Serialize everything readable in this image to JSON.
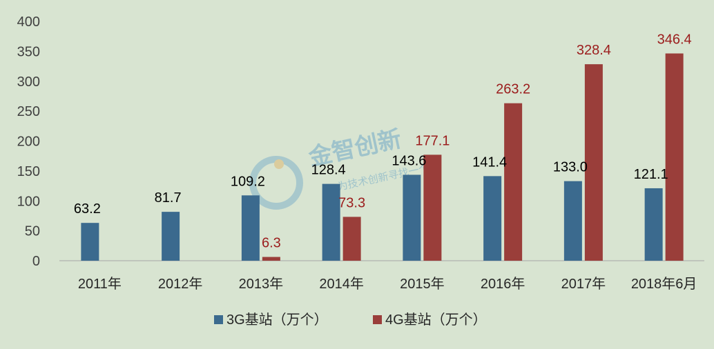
{
  "chart_data": {
    "type": "bar",
    "categories": [
      "2011年",
      "2012年",
      "2013年",
      "2014年",
      "2015年",
      "2016年",
      "2017年",
      "2018年6月"
    ],
    "series": [
      {
        "name": "3G基站（万个）",
        "values": [
          63.2,
          81.7,
          109.2,
          128.4,
          143.6,
          141.4,
          133.0,
          121.1
        ],
        "labels": [
          "63.2",
          "81.7",
          "109.2",
          "128.4",
          "143.6",
          "141.4",
          "133.0",
          "121.1"
        ],
        "color": "#3b6a8e",
        "label_color": "#000000"
      },
      {
        "name": "4G基站（万个）",
        "values": [
          null,
          null,
          6.3,
          73.3,
          177.1,
          263.2,
          328.4,
          346.4
        ],
        "labels": [
          null,
          null,
          "6.3",
          "73.3",
          "177.1",
          "263.2",
          "328.4",
          "346.4"
        ],
        "color": "#9a3e3a",
        "label_color": "#9b1c1c"
      }
    ],
    "yticks": [
      "0",
      "50",
      "100",
      "150",
      "200",
      "250",
      "300",
      "350",
      "400"
    ],
    "ylim": [
      0,
      400
    ],
    "grid": false,
    "legend_position": "bottom"
  },
  "watermark": {
    "text": "金智创新",
    "subtext": "为技术创新寻找一个"
  },
  "colors": {
    "background": "#d8e4d1",
    "series_3g": "#3b6a8e",
    "series_4g": "#9a3e3a"
  }
}
